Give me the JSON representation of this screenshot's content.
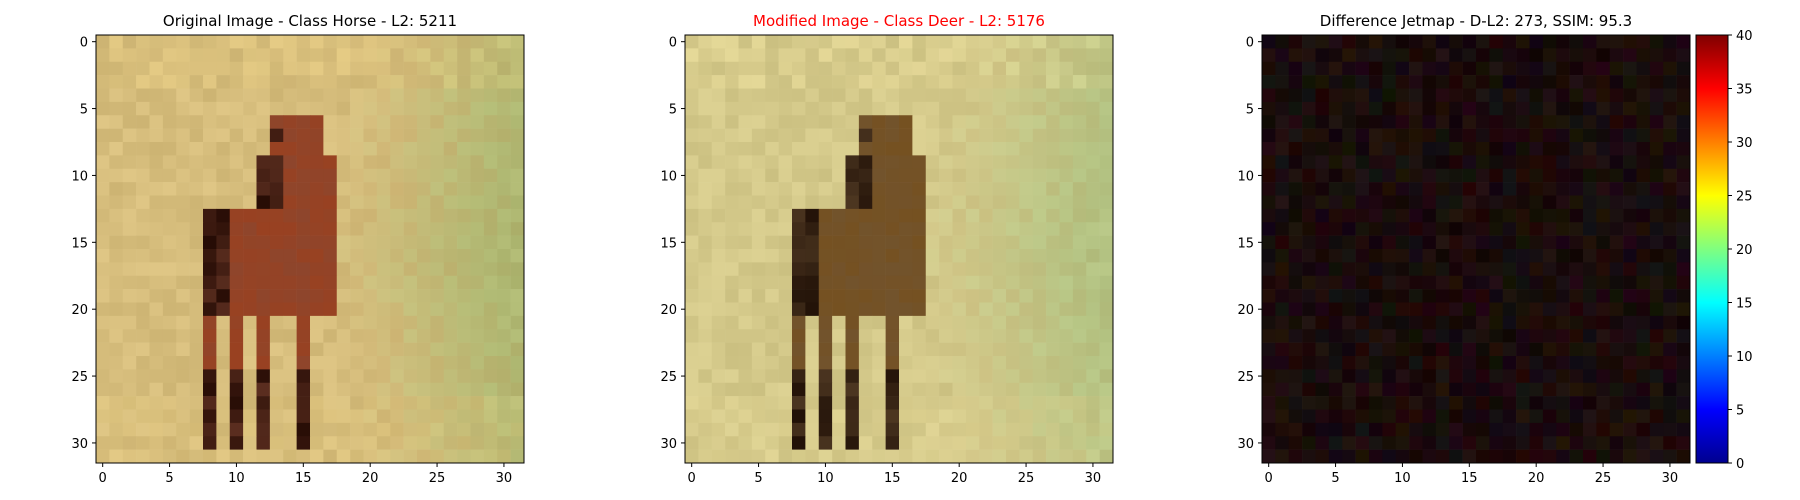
{
  "chart_data": [
    {
      "type": "heatmap",
      "title": "Original Image - Class Horse - L2: 5211",
      "title_color": "#000000",
      "image_size": [
        32,
        32
      ],
      "x_ticks": [
        0,
        5,
        10,
        15,
        20,
        25,
        30
      ],
      "y_ticks": [
        0,
        5,
        10,
        15,
        20,
        25,
        30
      ],
      "xlim": [
        -0.5,
        31.5
      ],
      "ylim": [
        31.5,
        -0.5
      ],
      "colors": {
        "background": "#d6bd7c",
        "horse_body": "#a24a2a",
        "horse_dark": "#2e140d",
        "grass": "#9bb36b",
        "highlight": "#e7cb7b"
      }
    },
    {
      "type": "heatmap",
      "title": "Modified Image - Class Deer - L2: 5176",
      "title_color": "#ff0000",
      "image_size": [
        32,
        32
      ],
      "x_ticks": [
        0,
        5,
        10,
        15,
        20,
        25,
        30
      ],
      "y_ticks": [
        0,
        5,
        10,
        15,
        20,
        25,
        30
      ],
      "xlim": [
        -0.5,
        31.5
      ],
      "ylim": [
        31.5,
        -0.5
      ],
      "colors": {
        "background": "#d4c98a",
        "horse_body": "#7e5a2a",
        "horse_dark": "#2a1a10",
        "grass": "#a3bd7c",
        "highlight": "#ecdd98"
      }
    },
    {
      "type": "heatmap",
      "title": "Difference Jetmap - D-L2: 273, SSIM: 95.3",
      "title_color": "#000000",
      "image_size": [
        32,
        32
      ],
      "x_ticks": [
        0,
        5,
        10,
        15,
        20,
        25,
        30
      ],
      "y_ticks": [
        0,
        5,
        10,
        15,
        20,
        25,
        30
      ],
      "xlim": [
        -0.5,
        31.5
      ],
      "ylim": [
        31.5,
        -0.5
      ],
      "colorbar": {
        "min": 0,
        "max": 40,
        "ticks": [
          0,
          5,
          10,
          15,
          20,
          25,
          30,
          35,
          40
        ],
        "colormap": "jet"
      },
      "colors": {
        "background": "#1a0c0c"
      }
    }
  ]
}
